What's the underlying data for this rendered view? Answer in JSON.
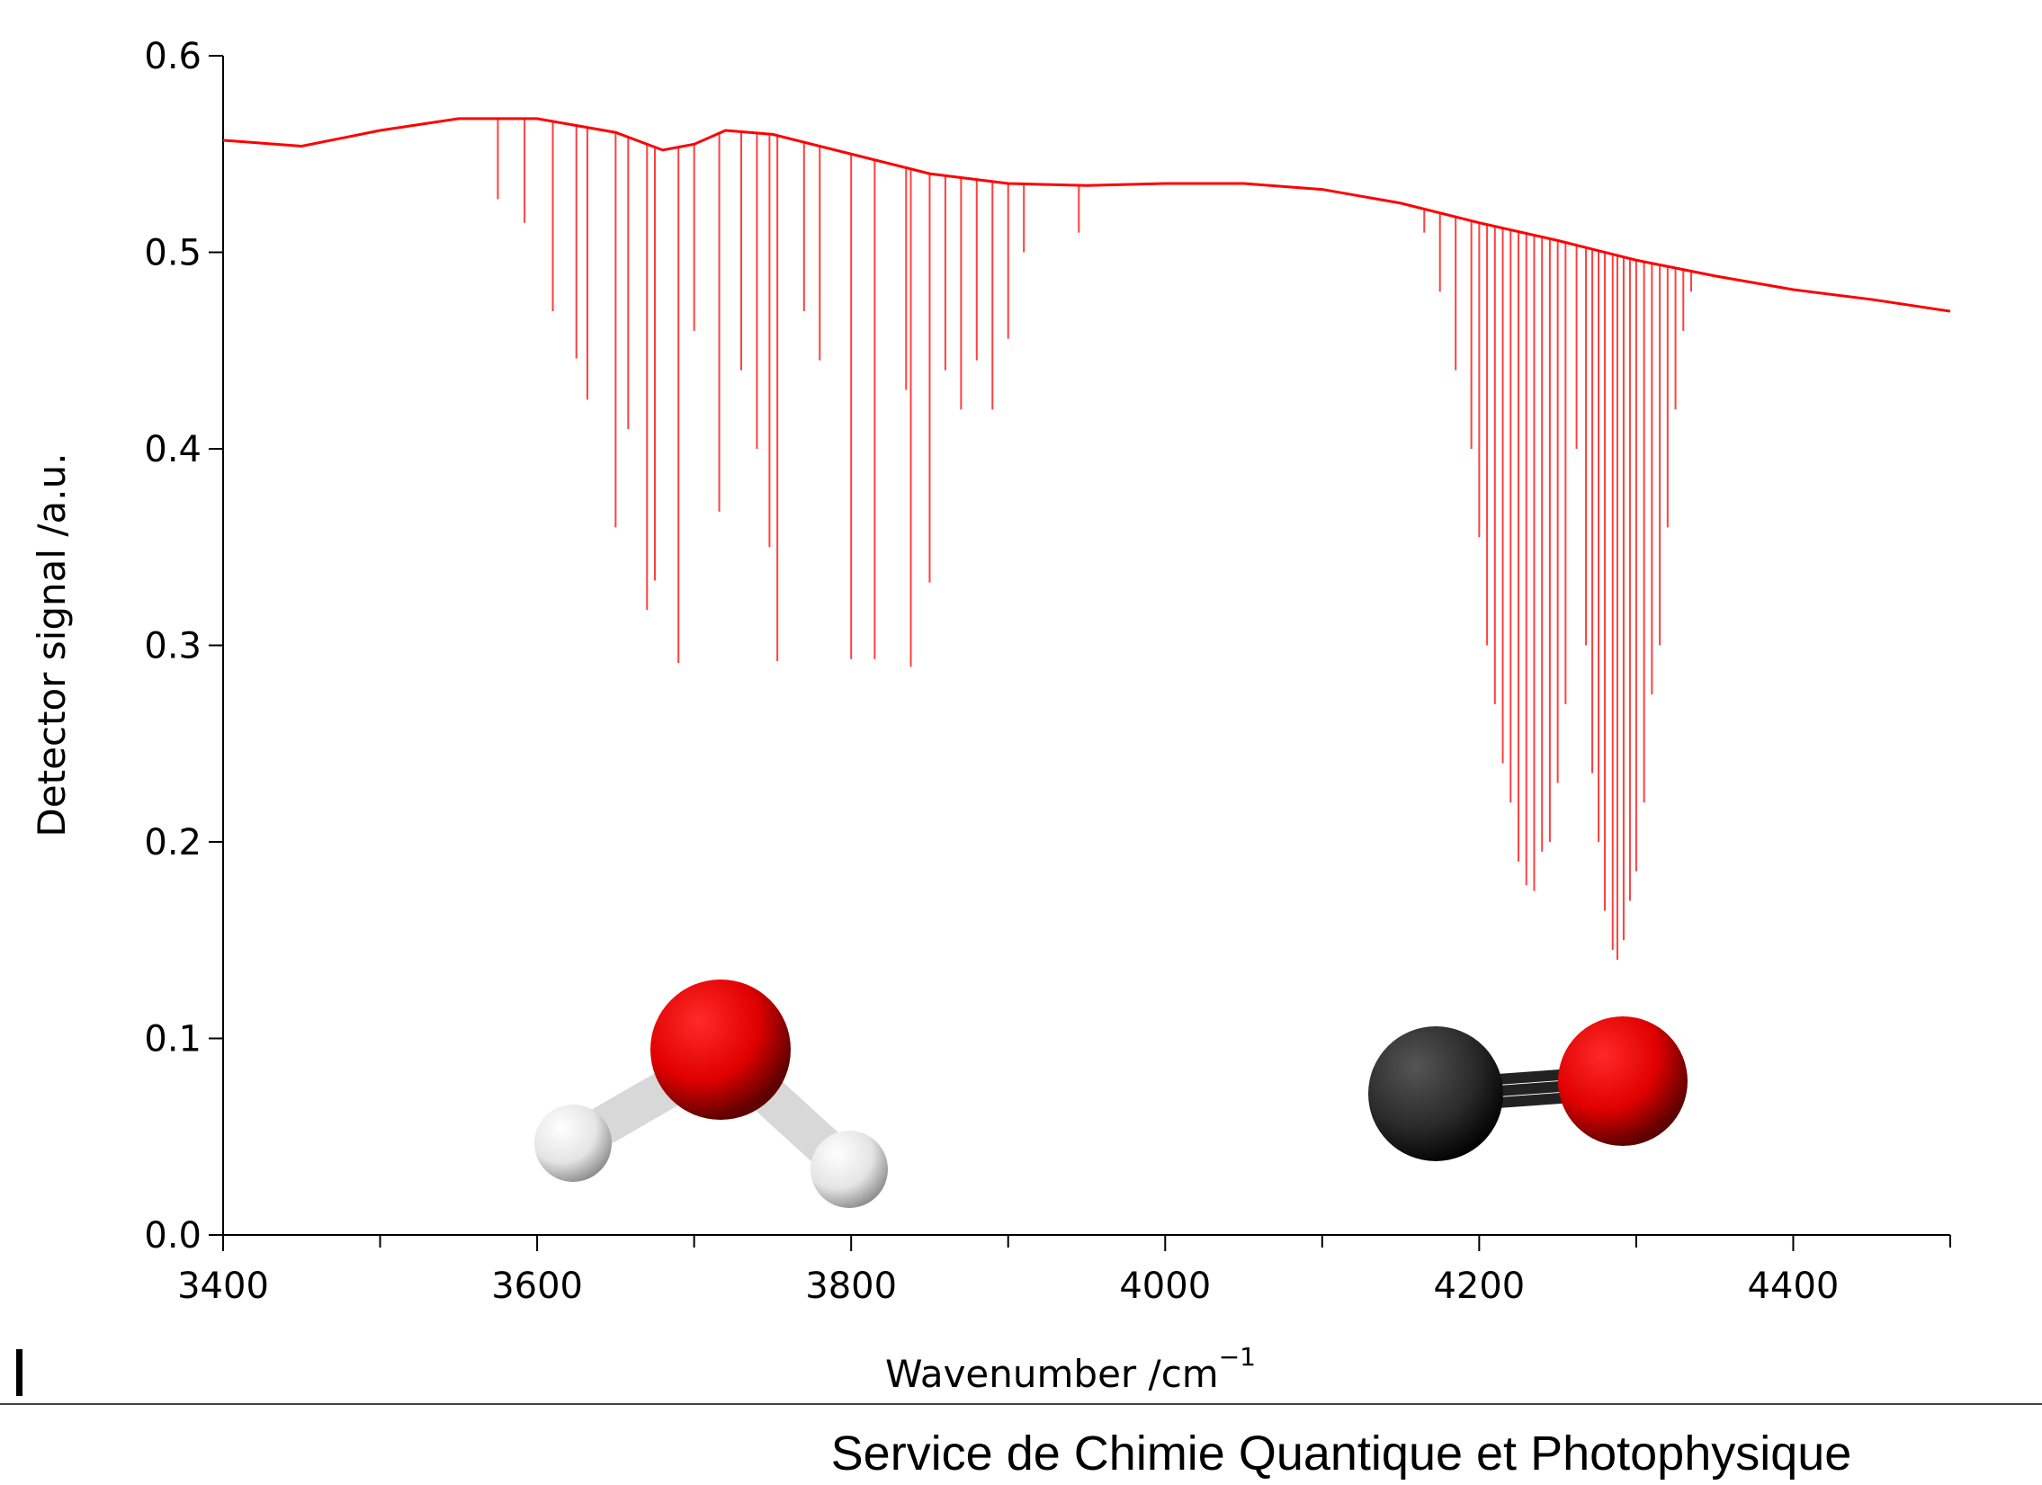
{
  "chart_data": {
    "type": "line",
    "xlabel": "Wavenumber /cm",
    "xlabel_superscript": "−1",
    "ylabel": "Detector signal /a.u.",
    "footer": "Service de Chimie Quantique et Photophysique",
    "xlim": [
      3400,
      4500
    ],
    "ylim": [
      0,
      0.6
    ],
    "xticks": [
      3400,
      3600,
      3800,
      4000,
      4200,
      4400
    ],
    "xminorticks": [
      3500,
      3700,
      3900,
      4100,
      4300,
      4500
    ],
    "yticks": [
      {
        "value": 0,
        "label": "0.0"
      },
      0.1,
      0.2,
      0.3,
      0.4,
      0.5,
      0.6
    ],
    "series": [
      {
        "color": "#ff0000",
        "x": [
          3400,
          3450,
          3500,
          3550,
          3600,
          3650,
          3680,
          3700,
          3720,
          3750,
          3800,
          3850,
          3900,
          3950,
          4000,
          4050,
          4100,
          4150,
          4200,
          4250,
          4300,
          4350,
          4400,
          4450,
          4500
        ],
        "values": [
          0.557,
          0.554,
          0.562,
          0.568,
          0.568,
          0.561,
          0.552,
          0.555,
          0.562,
          0.56,
          0.55,
          0.54,
          0.535,
          0.534,
          0.535,
          0.535,
          0.532,
          0.525,
          0.515,
          0.506,
          0.496,
          0.488,
          0.481,
          0.476,
          0.47
        ]
      },
      {
        "color": "#ff0000",
        "style": "sticks",
        "x": [
          3575,
          3592,
          3610,
          3625,
          3632,
          3650,
          3658,
          3670,
          3675,
          3690,
          3700,
          3716,
          3730,
          3740,
          3748,
          3753,
          3770,
          3780,
          3800,
          3815,
          3835,
          3838,
          3850,
          3860,
          3870,
          3880,
          3890,
          3900,
          3910,
          3945,
          4165,
          4175,
          4185,
          4195,
          4200,
          4205,
          4210,
          4215,
          4220,
          4225,
          4230,
          4235,
          4240,
          4245,
          4250,
          4255,
          4262,
          4268,
          4272,
          4276,
          4280,
          4285,
          4288,
          4292,
          4296,
          4300,
          4305,
          4310,
          4315,
          4320,
          4325,
          4330,
          4335
        ],
        "values": [
          0.527,
          0.515,
          0.47,
          0.446,
          0.425,
          0.36,
          0.41,
          0.318,
          0.333,
          0.291,
          0.46,
          0.368,
          0.44,
          0.4,
          0.35,
          0.292,
          0.47,
          0.445,
          0.293,
          0.293,
          0.43,
          0.289,
          0.332,
          0.44,
          0.42,
          0.445,
          0.42,
          0.456,
          0.5,
          0.51,
          0.51,
          0.48,
          0.44,
          0.4,
          0.355,
          0.3,
          0.27,
          0.24,
          0.22,
          0.19,
          0.178,
          0.175,
          0.195,
          0.2,
          0.23,
          0.27,
          0.4,
          0.3,
          0.235,
          0.2,
          0.165,
          0.145,
          0.14,
          0.15,
          0.17,
          0.185,
          0.22,
          0.275,
          0.3,
          0.36,
          0.42,
          0.46,
          0.48
        ]
      }
    ]
  }
}
